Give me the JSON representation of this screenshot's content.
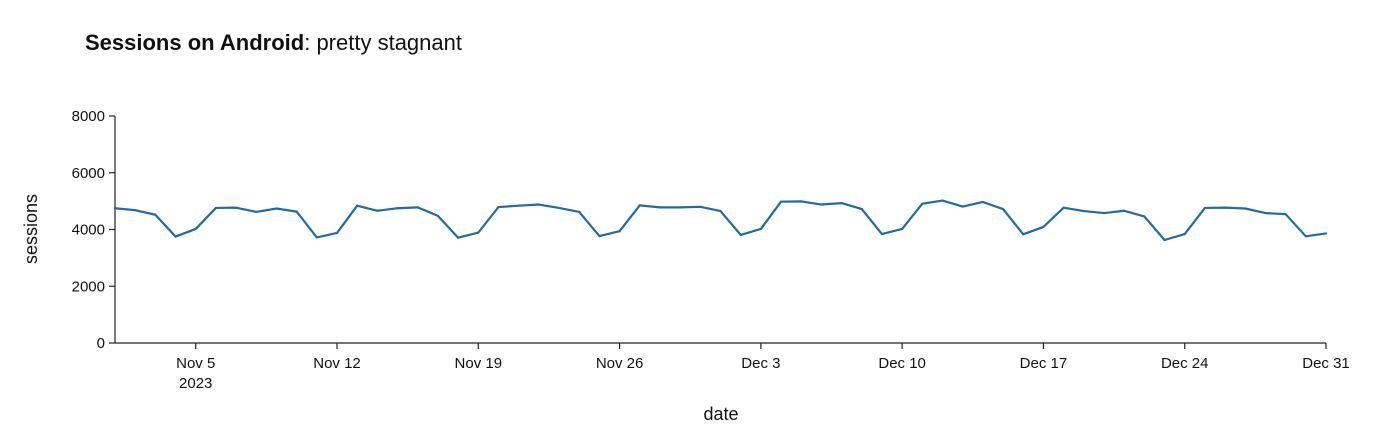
{
  "title": {
    "bold": "Sessions on Android",
    "rest": ": pretty stagnant"
  },
  "chart_data": {
    "type": "line",
    "xlabel": "date",
    "ylabel": "sessions",
    "ylim": [
      0,
      8000
    ],
    "xlim": [
      "2023-11-01",
      "2023-12-31"
    ],
    "yticks": [
      {
        "value": 0,
        "label": "0"
      },
      {
        "value": 2000,
        "label": "2000"
      },
      {
        "value": 4000,
        "label": "4000"
      },
      {
        "value": 6000,
        "label": "6000"
      },
      {
        "value": 8000,
        "label": "8000"
      }
    ],
    "xticks": [
      {
        "date": "2023-11-05",
        "label": "Nov 5",
        "sublabel": "2023"
      },
      {
        "date": "2023-11-12",
        "label": "Nov 12"
      },
      {
        "date": "2023-11-19",
        "label": "Nov 19"
      },
      {
        "date": "2023-11-26",
        "label": "Nov 26"
      },
      {
        "date": "2023-12-03",
        "label": "Dec 3"
      },
      {
        "date": "2023-12-10",
        "label": "Dec 10"
      },
      {
        "date": "2023-12-17",
        "label": "Dec 17"
      },
      {
        "date": "2023-12-24",
        "label": "Dec 24"
      },
      {
        "date": "2023-12-31",
        "label": "Dec 31"
      }
    ],
    "grid": false,
    "line_color": "#1f6ba3",
    "series": [
      {
        "x": [
          "2023-11-01",
          "2023-11-02",
          "2023-11-03",
          "2023-11-04",
          "2023-11-05",
          "2023-11-06",
          "2023-11-07",
          "2023-11-08",
          "2023-11-09",
          "2023-11-10",
          "2023-11-11",
          "2023-11-12",
          "2023-11-13",
          "2023-11-14",
          "2023-11-15",
          "2023-11-16",
          "2023-11-17",
          "2023-11-18",
          "2023-11-19",
          "2023-11-20",
          "2023-11-21",
          "2023-11-22",
          "2023-11-23",
          "2023-11-24",
          "2023-11-25",
          "2023-11-26",
          "2023-11-27",
          "2023-11-28",
          "2023-11-29",
          "2023-11-30",
          "2023-12-01",
          "2023-12-02",
          "2023-12-03",
          "2023-12-04",
          "2023-12-05",
          "2023-12-06",
          "2023-12-07",
          "2023-12-08",
          "2023-12-09",
          "2023-12-10",
          "2023-12-11",
          "2023-12-12",
          "2023-12-13",
          "2023-12-14",
          "2023-12-15",
          "2023-12-16",
          "2023-12-17",
          "2023-12-18",
          "2023-12-19",
          "2023-12-20",
          "2023-12-21",
          "2023-12-22",
          "2023-12-23",
          "2023-12-24",
          "2023-12-25",
          "2023-12-26",
          "2023-12-27",
          "2023-12-28",
          "2023-12-29",
          "2023-12-30",
          "2023-12-31"
        ],
        "y": [
          4750,
          4680,
          4520,
          3750,
          4020,
          4760,
          4770,
          4620,
          4740,
          4630,
          3720,
          3880,
          4840,
          4660,
          4750,
          4780,
          4480,
          3710,
          3890,
          4790,
          4840,
          4880,
          4760,
          4620,
          3770,
          3940,
          4850,
          4780,
          4780,
          4800,
          4650,
          3810,
          4020,
          4980,
          4990,
          4880,
          4930,
          4720,
          3840,
          4020,
          4910,
          5020,
          4810,
          4970,
          4720,
          3830,
          4090,
          4770,
          4650,
          4580,
          4660,
          4460,
          3630,
          3840,
          4760,
          4770,
          4740,
          4580,
          4540,
          3760,
          3860
        ]
      }
    ]
  }
}
